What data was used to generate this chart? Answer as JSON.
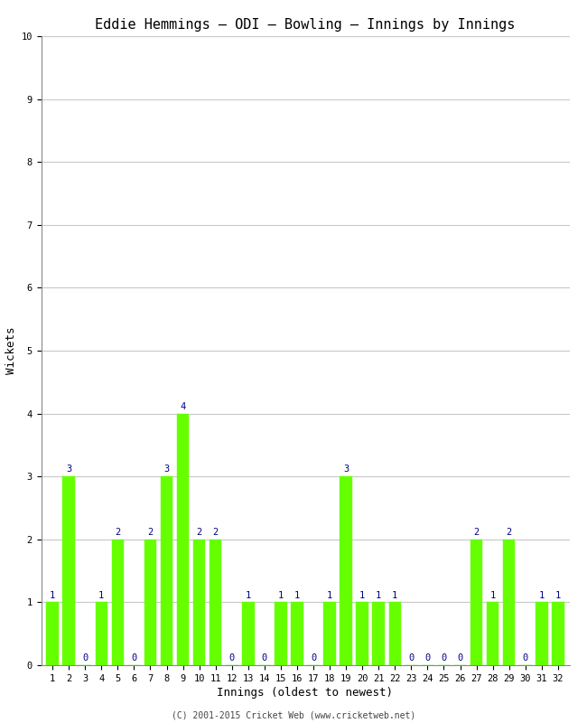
{
  "title": "Eddie Hemmings – ODI – Bowling – Innings by Innings",
  "xlabel": "Innings (oldest to newest)",
  "ylabel": "Wickets",
  "innings": [
    1,
    2,
    3,
    4,
    5,
    6,
    7,
    8,
    9,
    10,
    11,
    12,
    13,
    14,
    15,
    16,
    17,
    18,
    19,
    20,
    21,
    22,
    23,
    24,
    25,
    26,
    27,
    28,
    29,
    30,
    31,
    32
  ],
  "wickets": [
    1,
    3,
    0,
    1,
    2,
    0,
    2,
    3,
    4,
    2,
    2,
    0,
    1,
    0,
    1,
    1,
    0,
    1,
    3,
    1,
    1,
    1,
    0,
    0,
    0,
    0,
    2,
    1,
    2,
    0,
    1,
    1
  ],
  "bar_color": "#66ff00",
  "bar_edge_color": "#66ff00",
  "label_color": "#000080",
  "ylim": [
    0,
    10
  ],
  "yticks": [
    0,
    1,
    2,
    3,
    4,
    5,
    6,
    7,
    8,
    9,
    10
  ],
  "background_color": "#ffffff",
  "grid_color": "#c8c8c8",
  "title_fontsize": 11,
  "axis_label_fontsize": 9,
  "tick_label_fontsize": 7.5,
  "bar_label_fontsize": 7.5,
  "copyright": "(C) 2001-2015 Cricket Web (www.cricketweb.net)"
}
